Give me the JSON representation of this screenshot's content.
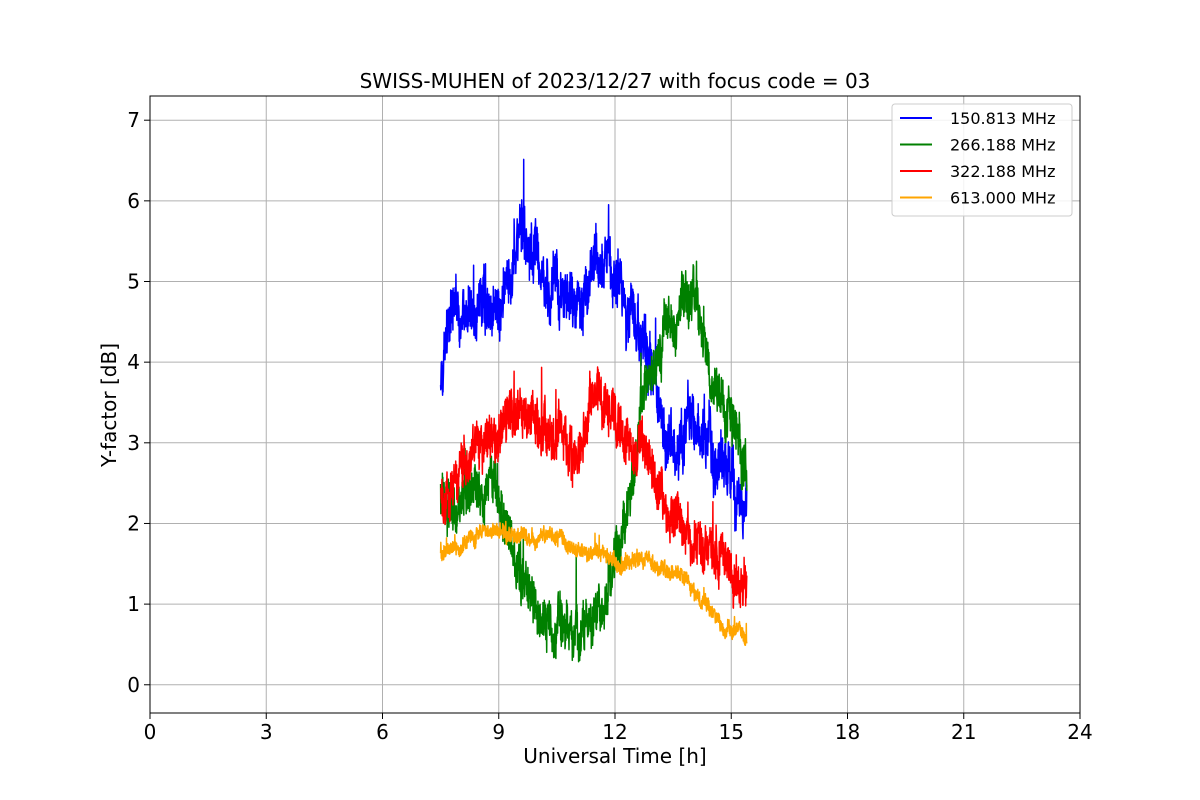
{
  "chart_data": {
    "type": "line",
    "title": "SWISS-MUHEN of 2023/12/27 with focus code = 03",
    "xlabel": "Universal Time [h]",
    "ylabel": "Y-factor [dB]",
    "xlim": [
      0,
      24
    ],
    "ylim": [
      -0.35,
      7.3
    ],
    "xticks": [
      0,
      3,
      6,
      9,
      12,
      15,
      18,
      21,
      24
    ],
    "xtick_labels": [
      "0",
      "3",
      "6",
      "9",
      "12",
      "15",
      "18",
      "21",
      "24"
    ],
    "yticks": [
      0,
      1,
      2,
      3,
      4,
      5,
      6,
      7
    ],
    "ytick_labels": [
      "0",
      "1",
      "2",
      "3",
      "4",
      "5",
      "6",
      "7"
    ],
    "grid": true,
    "legend_position": "top-right",
    "series": [
      {
        "name": "150.813 MHz",
        "color": "#0000ff",
        "noise": 0.35,
        "x": [
          7.5,
          7.7,
          8.0,
          8.3,
          8.6,
          8.9,
          9.2,
          9.5,
          9.7,
          10.0,
          10.3,
          10.6,
          10.9,
          11.2,
          11.5,
          11.8,
          12.1,
          12.4,
          12.7,
          13.0,
          13.3,
          13.6,
          13.9,
          14.2,
          14.5,
          14.8,
          15.1,
          15.4
        ],
        "y": [
          4.0,
          4.5,
          4.6,
          4.5,
          4.8,
          4.6,
          4.9,
          5.5,
          5.4,
          5.2,
          4.9,
          4.8,
          4.8,
          4.7,
          5.2,
          5.2,
          5.0,
          4.6,
          4.2,
          3.8,
          3.1,
          3.0,
          3.4,
          3.1,
          2.8,
          2.7,
          2.5,
          2.2
        ]
      },
      {
        "name": "266.188 MHz",
        "color": "#008000",
        "noise": 0.3,
        "x": [
          7.5,
          7.7,
          8.0,
          8.3,
          8.6,
          8.9,
          9.2,
          9.5,
          9.7,
          10.0,
          10.3,
          10.6,
          10.9,
          11.2,
          11.5,
          11.8,
          12.1,
          12.4,
          12.7,
          13.0,
          13.3,
          13.6,
          13.9,
          14.2,
          14.5,
          14.8,
          15.1,
          15.4
        ],
        "y": [
          2.3,
          2.2,
          2.3,
          2.4,
          2.5,
          2.4,
          2.0,
          1.4,
          1.2,
          0.9,
          0.8,
          0.8,
          0.7,
          0.6,
          0.9,
          1.2,
          1.8,
          2.4,
          3.5,
          4.0,
          4.4,
          4.3,
          4.9,
          4.5,
          3.8,
          3.5,
          3.0,
          2.6
        ]
      },
      {
        "name": "322.188 MHz",
        "color": "#ff0000",
        "noise": 0.3,
        "x": [
          7.5,
          7.7,
          8.0,
          8.3,
          8.6,
          8.9,
          9.2,
          9.5,
          9.7,
          10.0,
          10.3,
          10.6,
          10.9,
          11.2,
          11.5,
          11.8,
          12.1,
          12.4,
          12.7,
          13.0,
          13.3,
          13.6,
          13.9,
          14.2,
          14.5,
          14.8,
          15.1,
          15.4
        ],
        "y": [
          2.3,
          2.4,
          2.5,
          2.8,
          2.9,
          2.9,
          3.3,
          3.4,
          3.3,
          3.3,
          3.1,
          3.0,
          2.9,
          3.0,
          3.6,
          3.6,
          3.3,
          3.0,
          2.9,
          2.6,
          2.2,
          2.0,
          1.9,
          1.7,
          1.6,
          1.5,
          1.3,
          1.1
        ]
      },
      {
        "name": "613.000 MHz",
        "color": "#ffa500",
        "noise": 0.1,
        "x": [
          7.5,
          7.7,
          8.0,
          8.3,
          8.6,
          8.9,
          9.2,
          9.5,
          9.7,
          10.0,
          10.3,
          10.6,
          10.9,
          11.2,
          11.5,
          11.8,
          12.1,
          12.4,
          12.7,
          13.0,
          13.3,
          13.6,
          13.9,
          14.2,
          14.5,
          14.8,
          15.1,
          15.4
        ],
        "y": [
          1.6,
          1.7,
          1.7,
          1.8,
          1.9,
          1.9,
          1.9,
          1.8,
          1.8,
          1.8,
          1.8,
          1.8,
          1.7,
          1.6,
          1.6,
          1.6,
          1.5,
          1.5,
          1.6,
          1.5,
          1.4,
          1.4,
          1.3,
          1.0,
          0.9,
          0.7,
          0.7,
          0.6
        ]
      }
    ]
  }
}
